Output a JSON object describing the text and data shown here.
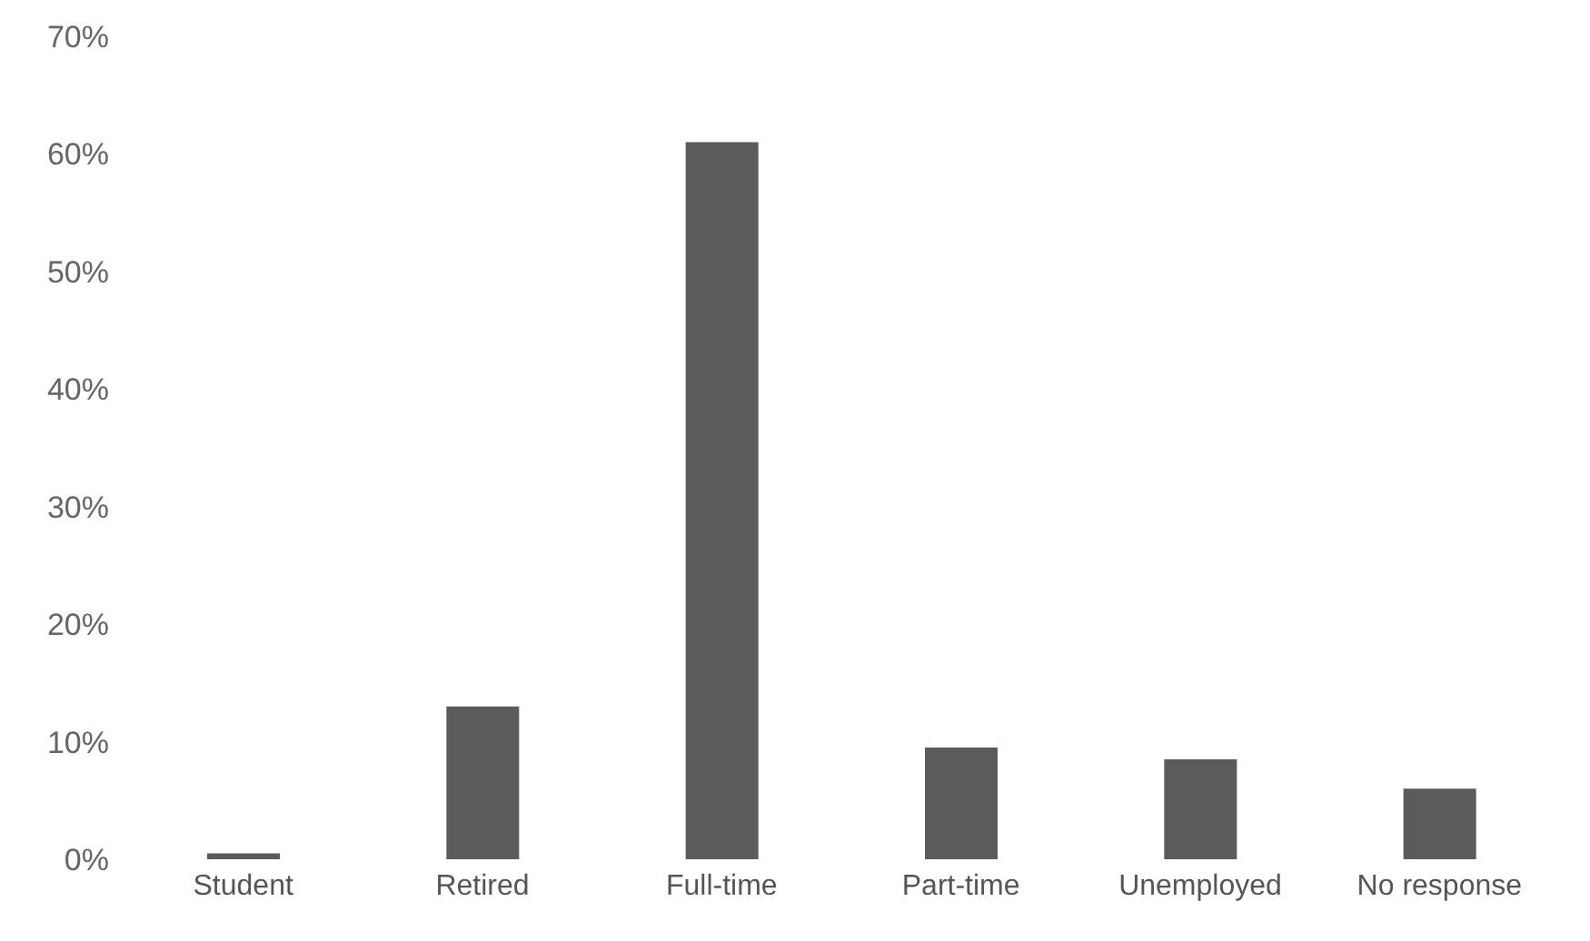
{
  "chart_data": {
    "type": "bar",
    "categories": [
      "Student",
      "Retired",
      "Full-time",
      "Part-time",
      "Unemployed",
      "No response"
    ],
    "values": [
      0.5,
      13,
      61,
      9.5,
      8.5,
      6
    ],
    "color": "#5b5b5b",
    "ylim": [
      0,
      70
    ],
    "yticks": [
      {
        "value": 0,
        "label": "0%"
      },
      {
        "value": 10,
        "label": "10%"
      },
      {
        "value": 20,
        "label": "20%"
      },
      {
        "value": 30,
        "label": "30%"
      },
      {
        "value": 40,
        "label": "40%"
      },
      {
        "value": 50,
        "label": "50%"
      },
      {
        "value": 60,
        "label": "60%"
      },
      {
        "value": 70,
        "label": "70%"
      }
    ],
    "grid": false
  }
}
